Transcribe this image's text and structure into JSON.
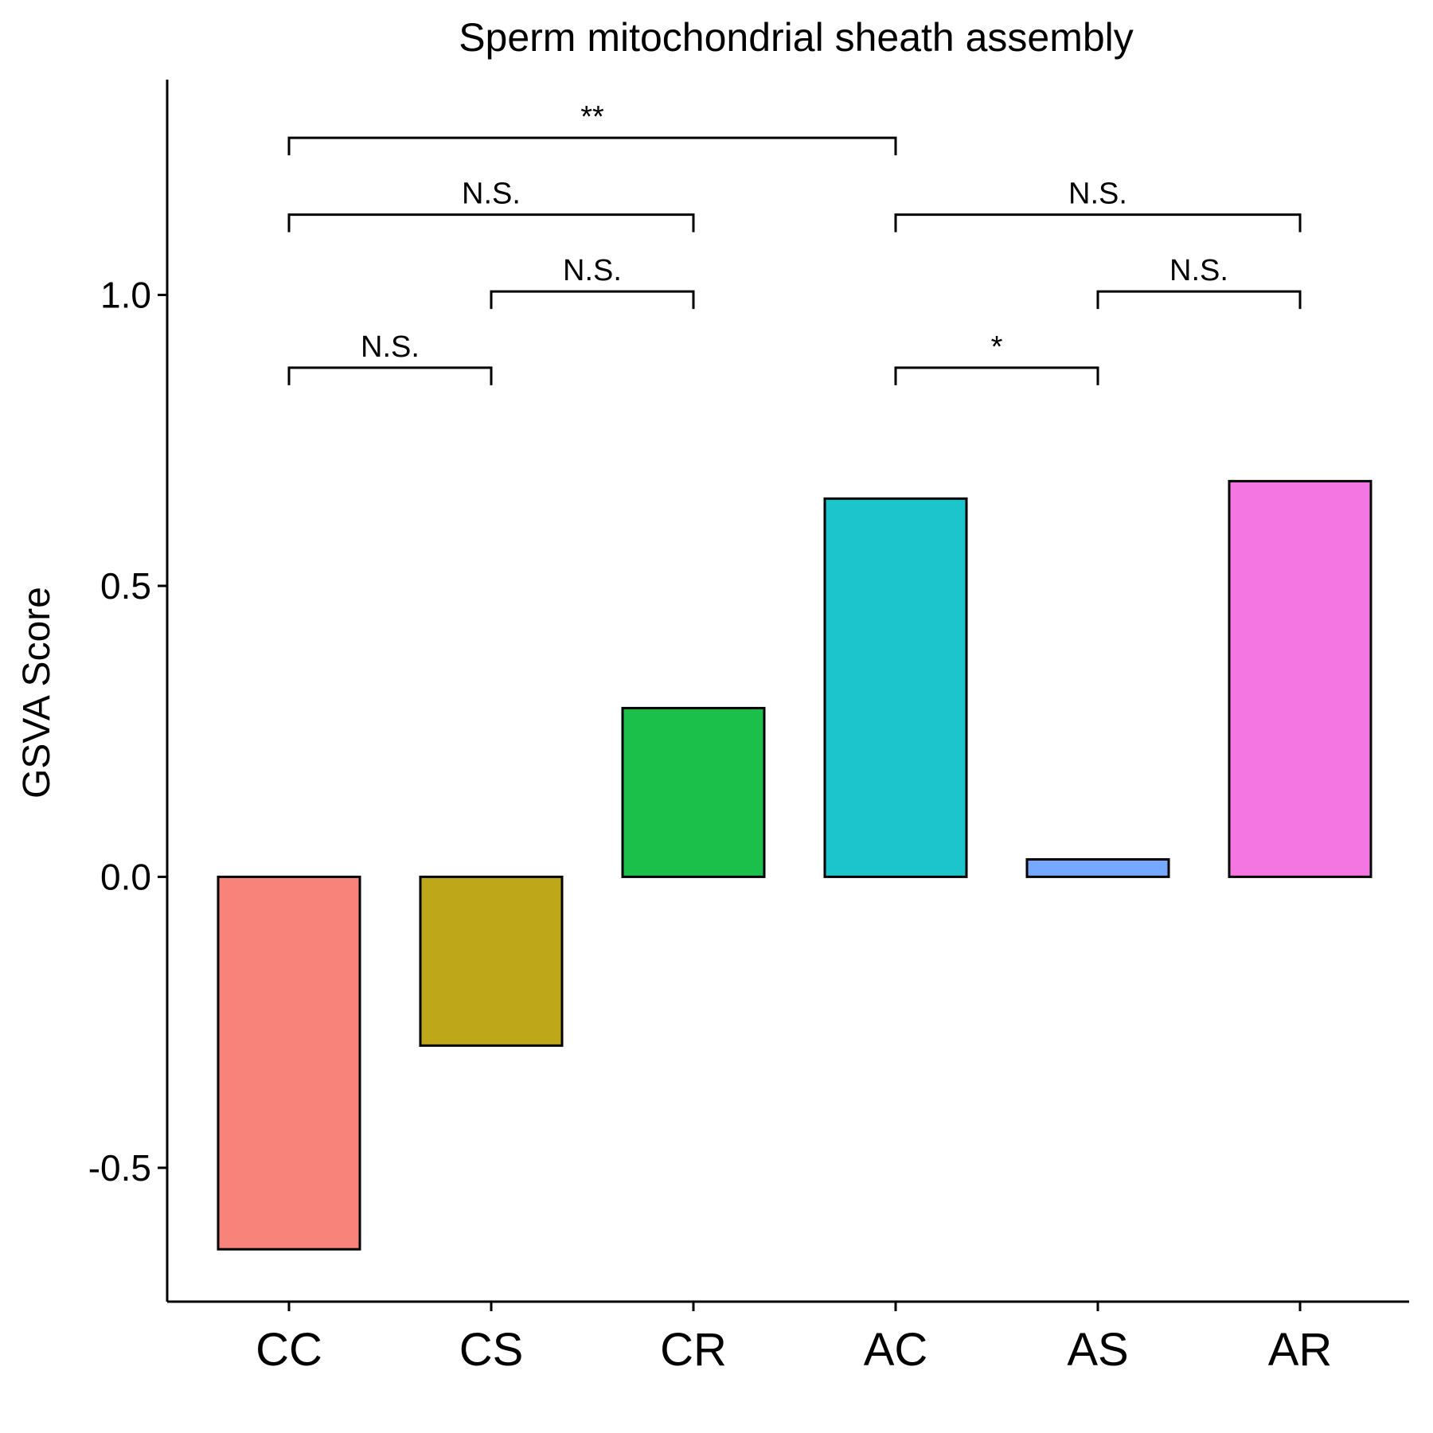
{
  "chart_data": {
    "type": "bar",
    "title": "Sperm mitochondrial sheath assembly",
    "xlabel": "",
    "ylabel": "GSVA Score",
    "categories": [
      "CC",
      "CS",
      "CR",
      "AC",
      "AS",
      "AR"
    ],
    "values": [
      -0.64,
      -0.29,
      0.29,
      0.65,
      0.03,
      0.68
    ],
    "colors": [
      "#F8837B",
      "#BEA719",
      "#1BC04B",
      "#1CC4CB",
      "#74A9FF",
      "#F476E2"
    ],
    "ylim": [
      -0.73,
      1.37
    ],
    "yticks": [
      -0.5,
      0.0,
      0.5,
      1.0
    ],
    "ytick_labels": [
      "-0.5",
      "0.0",
      "0.5",
      "1.0"
    ],
    "grid": false,
    "legend": "none",
    "comparisons": [
      {
        "from": "CC",
        "to": "CS",
        "label": "N.S.",
        "y": 0.875
      },
      {
        "from": "CS",
        "to": "CR",
        "label": "N.S.",
        "y": 1.006
      },
      {
        "from": "CC",
        "to": "CR",
        "label": "N.S.",
        "y": 1.138
      },
      {
        "from": "CC",
        "to": "AC",
        "label": "**",
        "y": 1.27
      },
      {
        "from": "AC",
        "to": "AS",
        "label": "*",
        "y": 0.875
      },
      {
        "from": "AS",
        "to": "AR",
        "label": "N.S.",
        "y": 1.006
      },
      {
        "from": "AC",
        "to": "AR",
        "label": "N.S.",
        "y": 1.138
      }
    ]
  }
}
